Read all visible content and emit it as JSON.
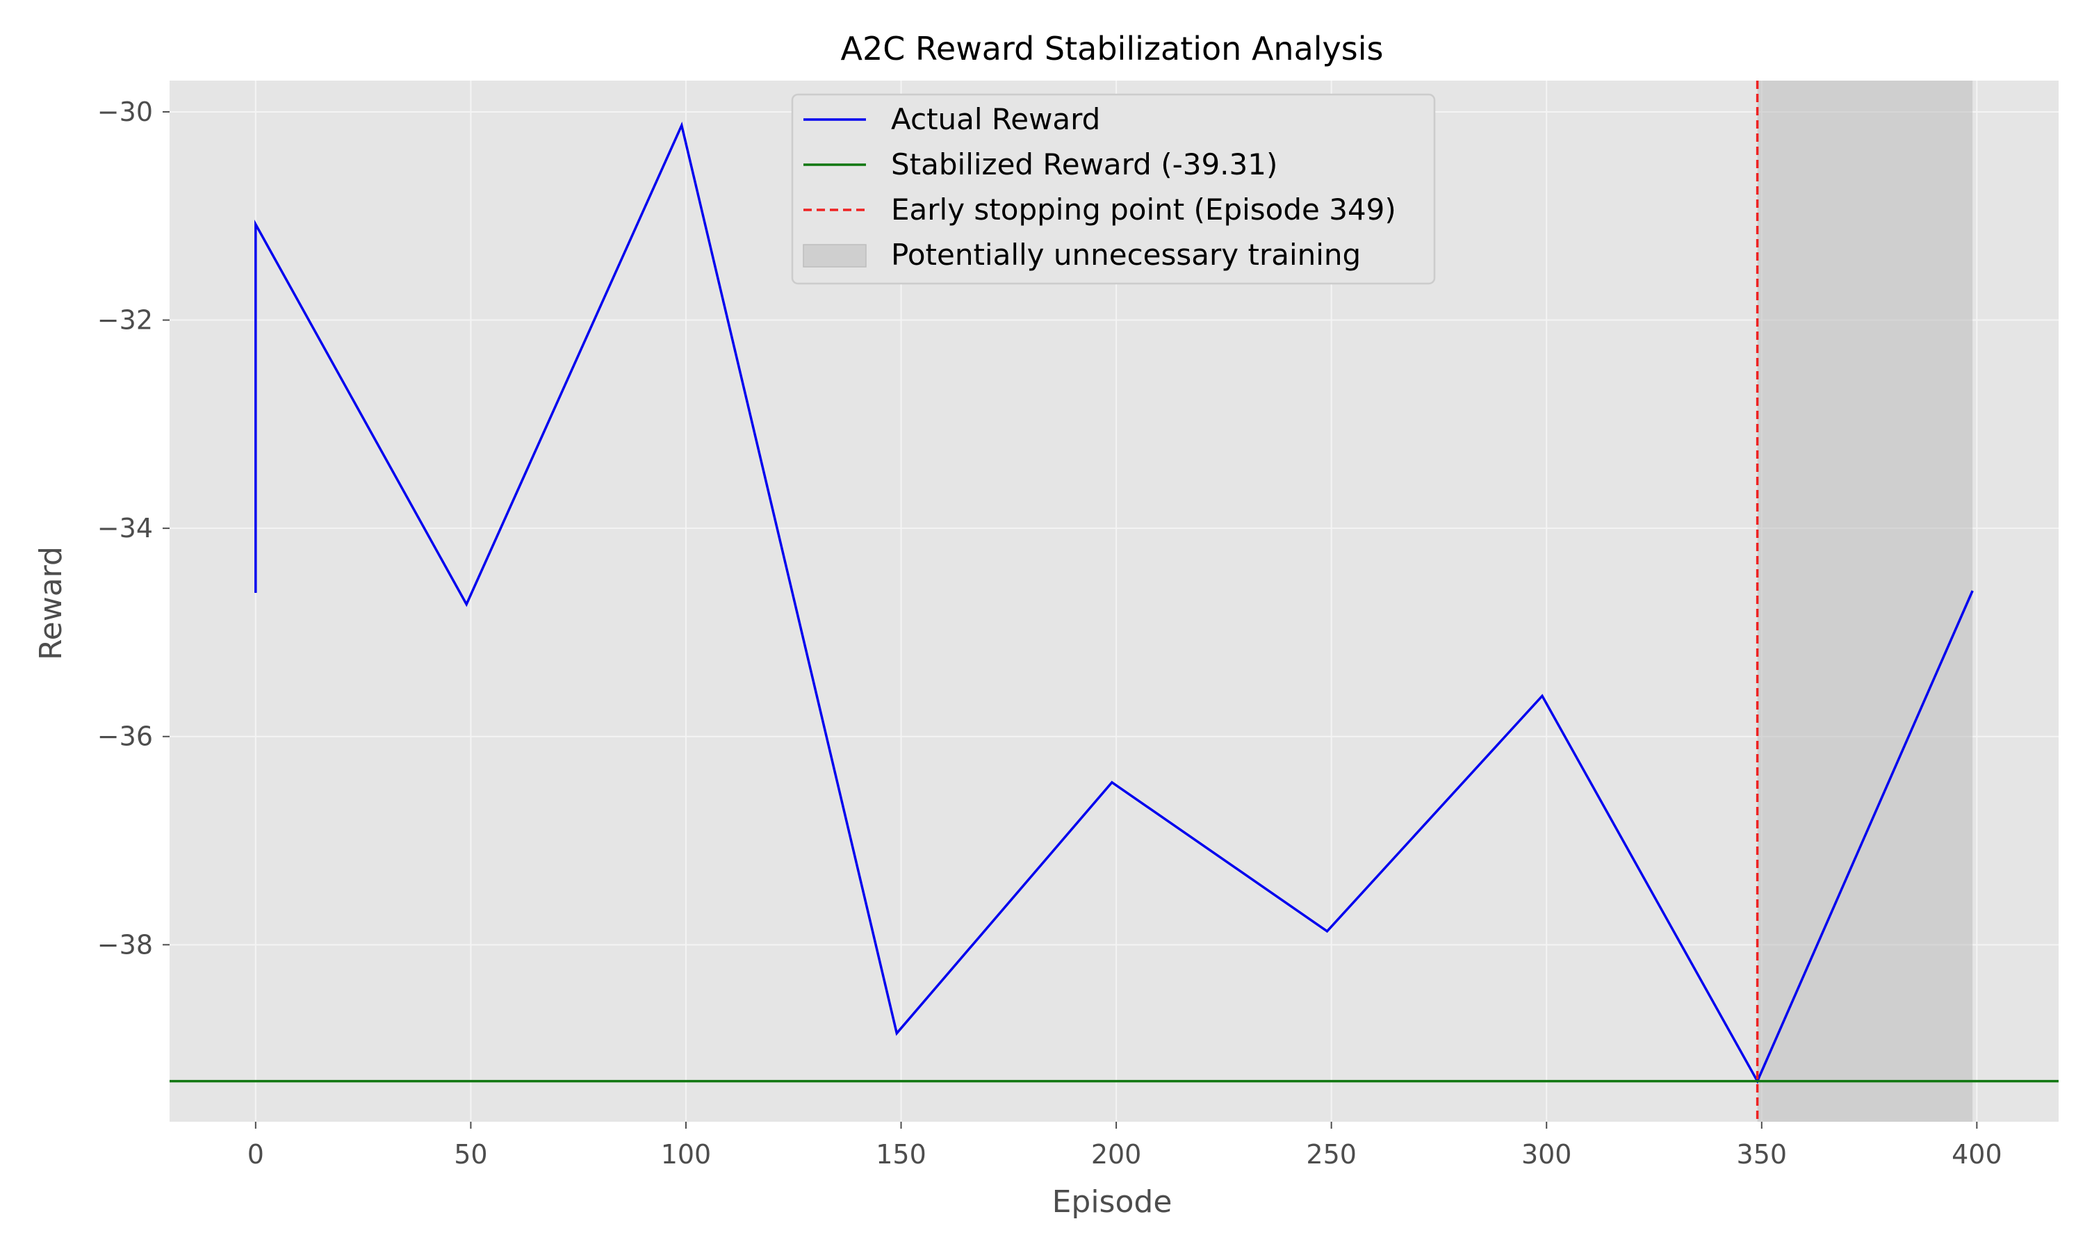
{
  "chart_data": {
    "type": "line",
    "title": "A2C Reward Stabilization Analysis",
    "xlabel": "Episode",
    "ylabel": "Reward",
    "xlim": [
      -20,
      419
    ],
    "ylim": [
      -39.7,
      -29.7
    ],
    "xticks": [
      0,
      50,
      100,
      150,
      200,
      250,
      300,
      350,
      400
    ],
    "yticks": [
      -38,
      -36,
      -34,
      -32,
      -30
    ],
    "ytick_labels": [
      "−38",
      "−36",
      "−34",
      "−32",
      "−30"
    ],
    "grid": true,
    "legend_position": "top-center",
    "series": [
      {
        "name": "Actual Reward",
        "kind": "line",
        "color": "#0000ee",
        "x": [
          0,
          0,
          49,
          99,
          149,
          199,
          249,
          299,
          349,
          399
        ],
        "y": [
          -34.62,
          -31.08,
          -34.73,
          -30.13,
          -38.85,
          -36.44,
          -37.87,
          -35.61,
          -39.31,
          -34.6
        ]
      },
      {
        "name": "Stabilized Reward (-39.31)",
        "kind": "hline",
        "color": "#117711",
        "y": -39.31
      },
      {
        "name": "Early stopping point (Episode 349)",
        "kind": "vline",
        "color": "#ee2222",
        "x": 349
      },
      {
        "name": "Potentially unnecessary training",
        "kind": "span",
        "color": "#bdbdbd",
        "x_start": 349,
        "x_end": 399
      }
    ]
  },
  "colors": {
    "plot_background": "#e5e5e5",
    "grid": "#f4f4f4"
  }
}
